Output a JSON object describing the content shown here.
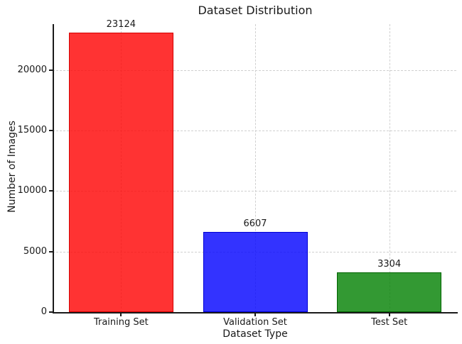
{
  "chart_data": {
    "type": "bar",
    "title": "Dataset Distribution",
    "xlabel": "Dataset Type",
    "ylabel": "Number of Images",
    "categories": [
      "Training Set",
      "Validation Set",
      "Test Set"
    ],
    "values": [
      23124,
      6607,
      3304
    ],
    "value_labels": [
      "23124",
      "6607",
      "3304"
    ],
    "series": [
      {
        "name": "Training Set",
        "value": 23124,
        "color": "#ff0000"
      },
      {
        "name": "Validation Set",
        "value": 6607,
        "color": "#0000ff"
      },
      {
        "name": "Test Set",
        "value": 3304,
        "color": "#008000"
      }
    ],
    "bar_fill_colors": [
      "#ff0000",
      "#0000ff",
      "#008000"
    ],
    "bar_edge_colors": [
      "#d40000",
      "#0000d4",
      "#006400"
    ],
    "bar_fill_alpha": 0.8,
    "yticks": [
      0,
      5000,
      10000,
      15000,
      20000
    ],
    "ytick_labels": [
      "0",
      "5000",
      "10000",
      "15000",
      "20000"
    ],
    "ylim": [
      0,
      23800
    ],
    "grid": true,
    "grid_style": "dashed",
    "grid_color": "#d0d0d0",
    "axis_color": "#1a1a1a",
    "legend": "none"
  }
}
